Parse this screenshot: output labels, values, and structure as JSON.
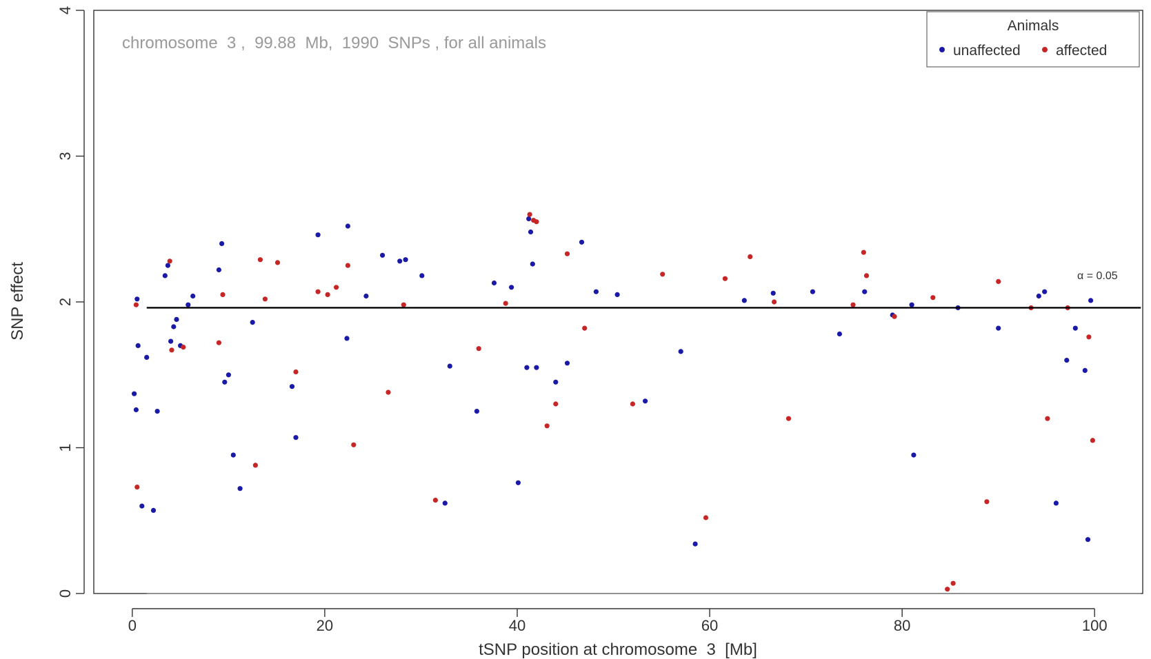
{
  "chart_data": {
    "type": "scatter",
    "subtitle": "chromosome  3 ,  99.88  Mb,  1990  SNPs , for all animals",
    "xlabel": "tSNP position at chromosome  3  [Mb]",
    "ylabel": "SNP effect",
    "xlim": [
      -4,
      105
    ],
    "ylim": [
      0,
      4
    ],
    "x_ticks": [
      "0",
      "20",
      "40",
      "60",
      "80",
      "100"
    ],
    "y_ticks": [
      "0",
      "1",
      "2",
      "3",
      "4"
    ],
    "grid": false,
    "legend": {
      "title": "Animals",
      "position": "top-right",
      "entries": [
        {
          "label": "unaffected",
          "color": "#1a1aa6"
        },
        {
          "label": "affected",
          "color": "#c62626"
        }
      ]
    },
    "threshold": {
      "y": 1.96,
      "x_range": [
        1.5,
        104.8
      ],
      "label": "α = 0.05",
      "color": "#000000"
    },
    "baseline": {
      "y": 0,
      "color": "#888888"
    },
    "n_snps": 1990,
    "series": [
      {
        "name": "unaffected",
        "color": "#1a1aa6",
        "points": [
          [
            0.2,
            1.37
          ],
          [
            0.4,
            1.26
          ],
          [
            0.5,
            2.02
          ],
          [
            0.6,
            1.7
          ],
          [
            1.0,
            0.6
          ],
          [
            1.5,
            1.62
          ],
          [
            2.2,
            0.57
          ],
          [
            2.6,
            1.25
          ],
          [
            3.4,
            2.18
          ],
          [
            3.7,
            2.25
          ],
          [
            4.0,
            1.73
          ],
          [
            4.3,
            1.83
          ],
          [
            4.6,
            1.88
          ],
          [
            5.0,
            1.7
          ],
          [
            5.8,
            1.98
          ],
          [
            6.3,
            2.04
          ],
          [
            9.0,
            2.22
          ],
          [
            9.3,
            2.4
          ],
          [
            9.6,
            1.45
          ],
          [
            10.0,
            1.5
          ],
          [
            10.5,
            0.95
          ],
          [
            11.2,
            0.72
          ],
          [
            12.5,
            1.86
          ],
          [
            16.6,
            1.42
          ],
          [
            17.0,
            1.07
          ],
          [
            19.3,
            2.46
          ],
          [
            22.4,
            2.52
          ],
          [
            22.3,
            1.75
          ],
          [
            24.3,
            2.04
          ],
          [
            26.0,
            2.32
          ],
          [
            27.8,
            2.28
          ],
          [
            28.4,
            2.29
          ],
          [
            30.1,
            2.18
          ],
          [
            32.5,
            0.62
          ],
          [
            33.0,
            1.56
          ],
          [
            35.8,
            1.25
          ],
          [
            37.6,
            2.13
          ],
          [
            39.4,
            2.1
          ],
          [
            40.1,
            0.76
          ],
          [
            41.0,
            1.55
          ],
          [
            41.2,
            2.57
          ],
          [
            41.4,
            2.48
          ],
          [
            41.6,
            2.26
          ],
          [
            42.0,
            1.55
          ],
          [
            44.0,
            1.45
          ],
          [
            45.2,
            1.58
          ],
          [
            46.7,
            2.41
          ],
          [
            48.2,
            2.07
          ],
          [
            50.4,
            2.05
          ],
          [
            53.3,
            1.32
          ],
          [
            57.0,
            1.66
          ],
          [
            58.5,
            0.34
          ],
          [
            63.6,
            2.01
          ],
          [
            66.6,
            2.06
          ],
          [
            70.7,
            2.07
          ],
          [
            73.5,
            1.78
          ],
          [
            76.1,
            2.07
          ],
          [
            79.0,
            1.91
          ],
          [
            81.0,
            1.98
          ],
          [
            81.2,
            0.95
          ],
          [
            85.8,
            1.96
          ],
          [
            90.0,
            1.82
          ],
          [
            94.2,
            2.04
          ],
          [
            94.8,
            2.07
          ],
          [
            96.0,
            0.62
          ],
          [
            99.6,
            2.01
          ],
          [
            99.3,
            0.37
          ],
          [
            99.0,
            1.53
          ],
          [
            98.0,
            1.82
          ],
          [
            97.1,
            1.6
          ]
        ]
      },
      {
        "name": "affected",
        "color": "#c62626",
        "points": [
          [
            0.4,
            1.98
          ],
          [
            0.5,
            0.73
          ],
          [
            3.9,
            2.28
          ],
          [
            4.1,
            1.67
          ],
          [
            5.3,
            1.69
          ],
          [
            9.0,
            1.72
          ],
          [
            9.4,
            2.05
          ],
          [
            12.8,
            0.88
          ],
          [
            13.3,
            2.29
          ],
          [
            13.8,
            2.02
          ],
          [
            15.1,
            2.27
          ],
          [
            17.0,
            1.52
          ],
          [
            19.3,
            2.07
          ],
          [
            20.3,
            2.05
          ],
          [
            21.2,
            2.1
          ],
          [
            22.4,
            2.25
          ],
          [
            23.0,
            1.02
          ],
          [
            26.6,
            1.38
          ],
          [
            28.2,
            1.98
          ],
          [
            31.5,
            0.64
          ],
          [
            36.0,
            1.68
          ],
          [
            38.8,
            1.99
          ],
          [
            41.3,
            2.6
          ],
          [
            41.7,
            2.56
          ],
          [
            42.0,
            2.55
          ],
          [
            43.1,
            1.15
          ],
          [
            44.0,
            1.3
          ],
          [
            45.2,
            2.33
          ],
          [
            47.0,
            1.82
          ],
          [
            52.0,
            1.3
          ],
          [
            55.1,
            2.19
          ],
          [
            59.6,
            0.52
          ],
          [
            61.6,
            2.16
          ],
          [
            64.2,
            2.31
          ],
          [
            66.7,
            2.0
          ],
          [
            68.2,
            1.2
          ],
          [
            74.9,
            1.98
          ],
          [
            76.0,
            2.34
          ],
          [
            76.3,
            2.18
          ],
          [
            79.2,
            1.9
          ],
          [
            83.2,
            2.03
          ],
          [
            88.8,
            0.63
          ],
          [
            90.0,
            2.14
          ],
          [
            93.4,
            1.96
          ],
          [
            95.1,
            1.2
          ],
          [
            97.2,
            1.96
          ],
          [
            99.4,
            1.76
          ],
          [
            99.8,
            1.05
          ],
          [
            84.7,
            0.03
          ],
          [
            85.3,
            0.07
          ]
        ]
      }
    ]
  }
}
